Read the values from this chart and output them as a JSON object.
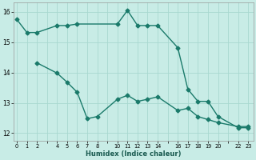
{
  "xlabel": "Humidex (Indice chaleur)",
  "bg_color": "#c8ece6",
  "grid_color": "#a8d8d0",
  "line_color": "#1a7a6a",
  "line1_x": [
    0,
    1,
    2,
    4,
    5,
    6,
    10,
    11,
    12,
    13,
    14,
    16,
    17,
    18,
    19,
    20,
    22,
    23
  ],
  "line1_y": [
    15.75,
    15.32,
    15.32,
    15.55,
    15.55,
    15.6,
    15.6,
    16.05,
    15.55,
    15.55,
    15.55,
    14.82,
    13.45,
    13.05,
    13.05,
    12.55,
    12.18,
    12.18
  ],
  "line2_x": [
    2,
    4,
    5,
    6,
    7,
    8,
    10,
    11,
    12,
    13,
    14,
    16,
    17,
    18,
    19,
    20,
    22,
    23
  ],
  "line2_y": [
    14.32,
    13.98,
    13.68,
    13.35,
    12.48,
    12.55,
    13.12,
    13.25,
    13.05,
    13.12,
    13.2,
    12.75,
    12.82,
    12.55,
    12.45,
    12.35,
    12.22,
    12.22
  ],
  "xtick_labels": [
    "0",
    "1",
    "2",
    "",
    "4",
    "5",
    "6",
    "7",
    "8",
    "",
    "10",
    "11",
    "12",
    "13",
    "14",
    "",
    "16",
    "17",
    "18",
    "19",
    "20",
    "",
    "22",
    "23"
  ],
  "xtick_positions": [
    0,
    1,
    2,
    3,
    4,
    5,
    6,
    7,
    8,
    9,
    10,
    11,
    12,
    13,
    14,
    15,
    16,
    17,
    18,
    19,
    20,
    21,
    22,
    23
  ],
  "xlim": [
    -0.3,
    23.5
  ],
  "ylim": [
    11.75,
    16.3
  ],
  "yticks": [
    12,
    13,
    14,
    15,
    16
  ],
  "markersize": 2.5,
  "linewidth": 1.0
}
